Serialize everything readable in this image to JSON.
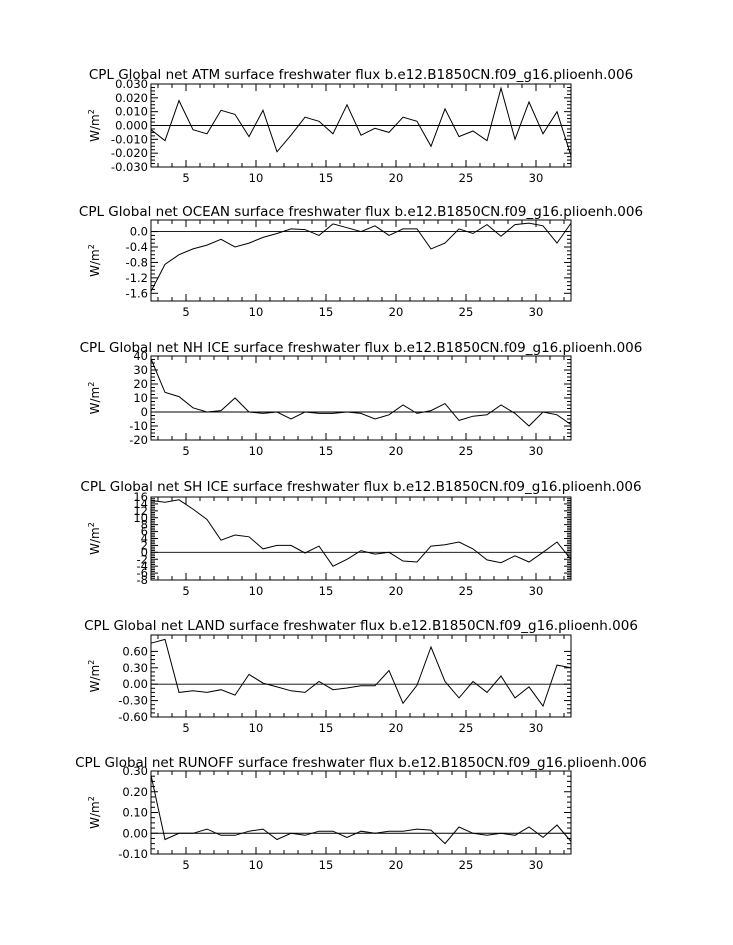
{
  "chart_data": [
    {
      "type": "line",
      "title": "CPL Global net ATM surface freshwater flux b.e12.B1850CN.f09_g16.plioenh.006",
      "ylabel": "W/m",
      "ylabel_sup": "2",
      "xlim": [
        2.5,
        32.5
      ],
      "ylim": [
        -0.03,
        0.03
      ],
      "xticks": [
        5,
        10,
        15,
        20,
        25,
        30
      ],
      "yticks": [
        -0.03,
        -0.02,
        -0.01,
        0.0,
        0.01,
        0.02,
        0.03
      ],
      "ytick_labels": [
        "-0.030",
        "-0.020",
        "-0.010",
        "0.000",
        "0.010",
        "0.020",
        "0.030"
      ],
      "x": [
        2.5,
        3.5,
        4.5,
        5.5,
        6.5,
        7.5,
        8.5,
        9.5,
        10.5,
        11.5,
        12.5,
        13.5,
        14.5,
        15.5,
        16.5,
        17.5,
        18.5,
        19.5,
        20.5,
        21.5,
        22.5,
        23.5,
        24.5,
        25.5,
        26.5,
        27.5,
        28.5,
        29.5,
        30.5,
        31.5,
        32.5
      ],
      "values": [
        -0.003,
        -0.011,
        0.018,
        -0.003,
        -0.006,
        0.011,
        0.008,
        -0.008,
        0.011,
        -0.019,
        -0.007,
        0.006,
        0.003,
        -0.006,
        0.015,
        -0.007,
        -0.002,
        -0.005,
        0.006,
        0.003,
        -0.015,
        0.012,
        -0.008,
        -0.004,
        -0.011,
        0.027,
        -0.01,
        0.017,
        -0.006,
        0.01,
        -0.022
      ]
    },
    {
      "type": "line",
      "title": "CPL Global net OCEAN surface freshwater flux b.e12.B1850CN.f09_g16.plioenh.006",
      "ylabel": "W/m",
      "ylabel_sup": "2",
      "xlim": [
        2.5,
        32.5
      ],
      "ylim": [
        -1.8,
        0.3
      ],
      "xticks": [
        5,
        10,
        15,
        20,
        25,
        30
      ],
      "yticks": [
        -1.6,
        -1.2,
        -0.8,
        -0.4,
        0.0
      ],
      "ytick_labels": [
        "-1.6",
        "-1.2",
        "-0.8",
        "-0.4",
        "0.0"
      ],
      "x": [
        2.5,
        3.5,
        4.5,
        5.5,
        6.5,
        7.5,
        8.5,
        9.5,
        10.5,
        11.5,
        12.5,
        13.5,
        14.5,
        15.5,
        16.5,
        17.5,
        18.5,
        19.5,
        20.5,
        21.5,
        22.5,
        23.5,
        24.5,
        25.5,
        26.5,
        27.5,
        28.5,
        29.5,
        30.5,
        31.5,
        32.5
      ],
      "values": [
        -1.55,
        -0.85,
        -0.6,
        -0.45,
        -0.35,
        -0.2,
        -0.4,
        -0.3,
        -0.15,
        -0.05,
        0.07,
        0.05,
        -0.1,
        0.2,
        0.1,
        0.0,
        0.15,
        -0.1,
        0.07,
        0.07,
        -0.45,
        -0.3,
        0.07,
        -0.05,
        0.18,
        -0.12,
        0.18,
        0.22,
        0.15,
        -0.3,
        0.22
      ]
    },
    {
      "type": "line",
      "title": "CPL Global net NH ICE surface freshwater flux b.e12.B1850CN.f09_g16.plioenh.006",
      "ylabel": "W/m",
      "ylabel_sup": "2",
      "xlim": [
        2.5,
        32.5
      ],
      "ylim": [
        -20,
        40
      ],
      "xticks": [
        5,
        10,
        15,
        20,
        25,
        30
      ],
      "yticks": [
        -20,
        -10,
        0,
        10,
        20,
        30,
        40
      ],
      "ytick_labels": [
        "-20",
        "-10",
        "0",
        "10",
        "20",
        "30",
        "40"
      ],
      "x": [
        2.5,
        3.5,
        4.5,
        5.5,
        6.5,
        7.5,
        8.5,
        9.5,
        10.5,
        11.5,
        12.5,
        13.5,
        14.5,
        15.5,
        16.5,
        17.5,
        18.5,
        19.5,
        20.5,
        21.5,
        22.5,
        23.5,
        24.5,
        25.5,
        26.5,
        27.5,
        28.5,
        29.5,
        30.5,
        31.5,
        32.5
      ],
      "values": [
        38,
        14,
        11,
        3,
        0,
        1,
        10,
        0,
        -1,
        0,
        -5,
        0,
        -1,
        -1,
        0,
        -1,
        -5,
        -2,
        5,
        -1,
        1,
        6,
        -6,
        -3,
        -2,
        5,
        -1,
        -10,
        0,
        -2,
        -9
      ]
    },
    {
      "type": "line",
      "title": "CPL Global net SH ICE surface freshwater flux b.e12.B1850CN.f09_g16.plioenh.006",
      "ylabel": "W/m",
      "ylabel_sup": "2",
      "xlim": [
        2.5,
        32.5
      ],
      "ylim": [
        -8,
        16
      ],
      "xticks": [
        5,
        10,
        15,
        20,
        25,
        30
      ],
      "yticks": [
        -8,
        -6,
        -4,
        -2,
        0,
        2,
        4,
        6,
        8,
        10,
        12,
        14,
        16
      ],
      "ytick_labels": [
        "-8",
        "-6",
        "-4",
        "-2",
        "0",
        "2",
        "4",
        "6",
        "8",
        "10",
        "12",
        "14",
        "16"
      ],
      "x": [
        2.5,
        3.5,
        4.5,
        5.5,
        6.5,
        7.5,
        8.5,
        9.5,
        10.5,
        11.5,
        12.5,
        13.5,
        14.5,
        15.5,
        16.5,
        17.5,
        18.5,
        19.5,
        20.5,
        21.5,
        22.5,
        23.5,
        24.5,
        25.5,
        26.5,
        27.5,
        28.5,
        29.5,
        30.5,
        31.5,
        32.5
      ],
      "values": [
        15,
        14.5,
        15.2,
        12.5,
        9.5,
        3.5,
        5,
        4.5,
        1,
        2,
        2,
        -0.2,
        1.8,
        -4,
        -2,
        0.5,
        -0.5,
        0,
        -2.5,
        -2.8,
        1.8,
        2.2,
        3,
        1,
        -2.2,
        -3,
        -1,
        -2.8,
        0,
        3,
        -2
      ]
    },
    {
      "type": "line",
      "title": "CPL Global net LAND surface freshwater flux b.e12.B1850CN.f09_g16.plioenh.006",
      "ylabel": "W/m",
      "ylabel_sup": "2",
      "xlim": [
        2.5,
        32.5
      ],
      "ylim": [
        -0.6,
        0.9
      ],
      "xticks": [
        5,
        10,
        15,
        20,
        25,
        30
      ],
      "yticks": [
        -0.6,
        -0.3,
        0.0,
        0.3,
        0.6
      ],
      "ytick_labels": [
        "-0.60",
        "-0.30",
        "0.00",
        "0.30",
        "0.60"
      ],
      "x": [
        2.5,
        3.5,
        4.5,
        5.5,
        6.5,
        7.5,
        8.5,
        9.5,
        10.5,
        11.5,
        12.5,
        13.5,
        14.5,
        15.5,
        16.5,
        17.5,
        18.5,
        19.5,
        20.5,
        21.5,
        22.5,
        23.5,
        24.5,
        25.5,
        26.5,
        27.5,
        28.5,
        29.5,
        30.5,
        31.5,
        32.5
      ],
      "values": [
        0.75,
        0.82,
        -0.15,
        -0.12,
        -0.15,
        -0.1,
        -0.2,
        0.18,
        0.02,
        -0.05,
        -0.12,
        -0.15,
        0.05,
        -0.1,
        -0.07,
        -0.03,
        -0.03,
        0.25,
        -0.35,
        -0.02,
        0.68,
        0.05,
        -0.25,
        0.05,
        -0.15,
        0.15,
        -0.25,
        -0.05,
        -0.4,
        0.35,
        0.3
      ]
    },
    {
      "type": "line",
      "title": "CPL Global net RUNOFF surface freshwater flux b.e12.B1850CN.f09_g16.plioenh.006",
      "ylabel": "W/m",
      "ylabel_sup": "2",
      "xlim": [
        2.5,
        32.5
      ],
      "ylim": [
        -0.1,
        0.3
      ],
      "xticks": [
        5,
        10,
        15,
        20,
        25,
        30
      ],
      "yticks": [
        -0.1,
        0.0,
        0.1,
        0.2,
        0.3
      ],
      "ytick_labels": [
        "-0.10",
        "0.00",
        "0.10",
        "0.20",
        "0.30"
      ],
      "x": [
        2.5,
        3.5,
        4.5,
        5.5,
        6.5,
        7.5,
        8.5,
        9.5,
        10.5,
        11.5,
        12.5,
        13.5,
        14.5,
        15.5,
        16.5,
        17.5,
        18.5,
        19.5,
        20.5,
        21.5,
        22.5,
        23.5,
        24.5,
        25.5,
        26.5,
        27.5,
        28.5,
        29.5,
        30.5,
        31.5,
        32.5
      ],
      "values": [
        0.28,
        -0.03,
        0.0,
        0.0,
        0.02,
        -0.01,
        -0.01,
        0.01,
        0.02,
        -0.03,
        0.0,
        -0.01,
        0.01,
        0.01,
        -0.02,
        0.01,
        0.0,
        0.01,
        0.01,
        0.02,
        0.015,
        -0.05,
        0.03,
        0.0,
        -0.01,
        0.0,
        -0.01,
        0.03,
        -0.02,
        0.04,
        -0.04
      ]
    }
  ]
}
